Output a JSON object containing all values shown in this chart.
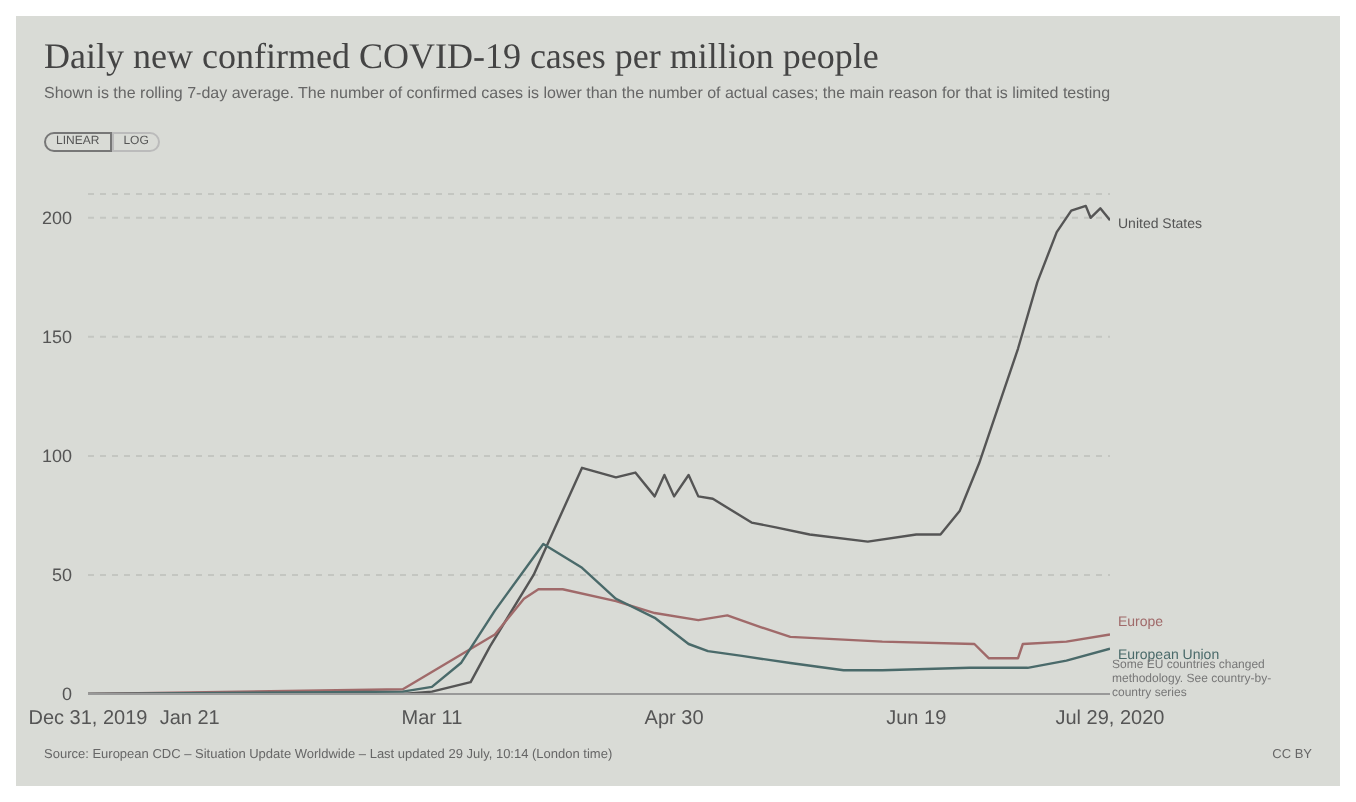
{
  "chart_data": {
    "type": "line",
    "title": "Daily new confirmed COVID-19 cases per million people",
    "subtitle": "Shown is the rolling 7-day average. The number of confirmed cases is lower than the number of actual cases; the main reason for that is limited testing",
    "annotations": [
      "LINEAR",
      "LOG",
      "Some EU countries changed methodology. See country-by-country series",
      "Source: European CDC – Situation Update Worldwide – Last updated 29 July, 10:14 (London time)",
      "CC BY"
    ],
    "xlim": [
      "2019-12-31",
      "2020-07-29"
    ],
    "xticks": [
      {
        "value": "2019-12-31",
        "label": "Dec 31, 2019"
      },
      {
        "value": "2020-01-21",
        "label": "Jan 21"
      },
      {
        "value": "2020-03-11",
        "label": "Mar 11"
      },
      {
        "value": "2020-04-30",
        "label": "Apr 30"
      },
      {
        "value": "2020-06-19",
        "label": "Jun 19"
      },
      {
        "value": "2020-07-29",
        "label": "Jul 29, 2020"
      }
    ],
    "ylim": [
      0,
      210
    ],
    "yticks": [
      0,
      50,
      100,
      150,
      200
    ],
    "grid": "y",
    "marker": "none",
    "line_style": "solid",
    "series": [
      {
        "name": "United States",
        "color": "#555555",
        "x": [
          "2019-12-31",
          "2020-03-05",
          "2020-03-11",
          "2020-03-19",
          "2020-03-23",
          "2020-04-01",
          "2020-04-11",
          "2020-04-18",
          "2020-04-22",
          "2020-04-26",
          "2020-04-28",
          "2020-04-30",
          "2020-05-03",
          "2020-05-05",
          "2020-05-08",
          "2020-05-16",
          "2020-05-21",
          "2020-05-28",
          "2020-06-09",
          "2020-06-19",
          "2020-06-24",
          "2020-06-28",
          "2020-07-02",
          "2020-07-06",
          "2020-07-10",
          "2020-07-14",
          "2020-07-18",
          "2020-07-21",
          "2020-07-24",
          "2020-07-25",
          "2020-07-27",
          "2020-07-29"
        ],
        "values": [
          0,
          0,
          1,
          5,
          20,
          50,
          95,
          91,
          93,
          83,
          92,
          83,
          92,
          83,
          82,
          72,
          70,
          67,
          64,
          67,
          67,
          77,
          97,
          121,
          145,
          173,
          194,
          203,
          205,
          200,
          204,
          199
        ]
      },
      {
        "name": "Europe",
        "color": "#a06a6a",
        "x": [
          "2019-12-31",
          "2020-03-05",
          "2020-03-24",
          "2020-03-30",
          "2020-04-02",
          "2020-04-07",
          "2020-04-18",
          "2020-04-26",
          "2020-05-05",
          "2020-05-11",
          "2020-05-18",
          "2020-05-24",
          "2020-06-12",
          "2020-07-01",
          "2020-07-04",
          "2020-07-10",
          "2020-07-11",
          "2020-07-20",
          "2020-07-29"
        ],
        "values": [
          0,
          2,
          25,
          40,
          44,
          44,
          39,
          34,
          31,
          33,
          28,
          24,
          22,
          21,
          15,
          15,
          21,
          22,
          25
        ]
      },
      {
        "name": "European Union",
        "color": "#4a6a6a",
        "x": [
          "2019-12-31",
          "2020-03-05",
          "2020-03-11",
          "2020-03-17",
          "2020-03-24",
          "2020-04-03",
          "2020-04-11",
          "2020-04-18",
          "2020-04-26",
          "2020-05-03",
          "2020-05-07",
          "2020-05-14",
          "2020-05-24",
          "2020-06-04",
          "2020-06-12",
          "2020-06-30",
          "2020-07-12",
          "2020-07-20",
          "2020-07-29"
        ],
        "values": [
          0,
          1,
          3,
          13,
          35,
          63,
          53,
          40,
          32,
          21,
          18,
          16,
          13,
          10,
          10,
          11,
          11,
          14,
          19
        ]
      }
    ]
  }
}
